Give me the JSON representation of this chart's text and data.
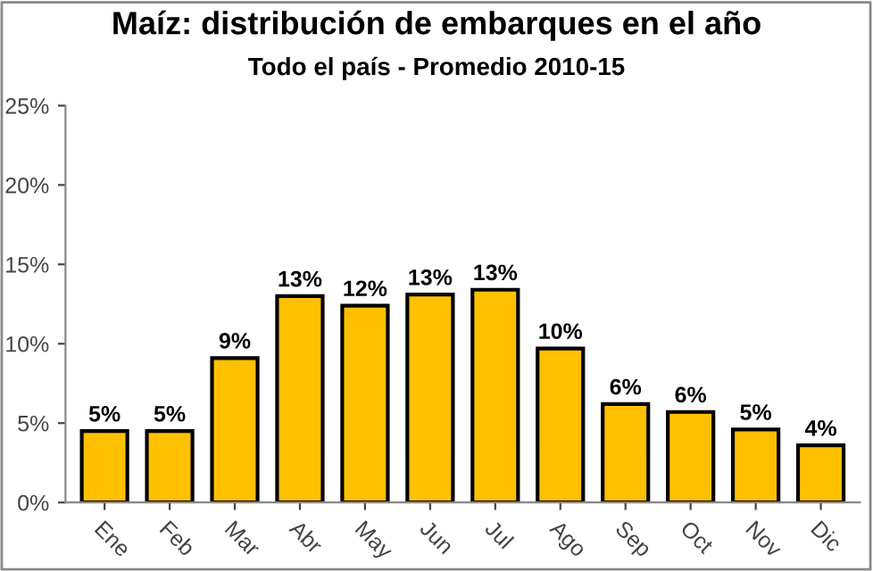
{
  "chart_data": {
    "type": "bar",
    "title": "Maíz: distribución de embarques en el año",
    "subtitle": "Todo el país - Promedio 2010-15",
    "categories": [
      "Ene",
      "Feb",
      "Mar",
      "Abr",
      "May",
      "Jun",
      "Jul",
      "Ago",
      "Sep",
      "Oct",
      "Nov",
      "Dic"
    ],
    "values": [
      4.5,
      4.5,
      9.1,
      13.0,
      12.4,
      13.1,
      13.4,
      9.7,
      6.2,
      5.7,
      4.6,
      3.6
    ],
    "value_labels": [
      "5%",
      "5%",
      "9%",
      "13%",
      "12%",
      "13%",
      "13%",
      "10%",
      "6%",
      "6%",
      "5%",
      "4%"
    ],
    "color": "#ffc000",
    "ylim": [
      0,
      25
    ],
    "yticks": [
      {
        "value": 0,
        "label": "0%"
      },
      {
        "value": 5,
        "label": "5%"
      },
      {
        "value": 10,
        "label": "10%"
      },
      {
        "value": 15,
        "label": "15%"
      },
      {
        "value": 20,
        "label": "20%"
      },
      {
        "value": 25,
        "label": "25%"
      }
    ],
    "grid": false
  }
}
